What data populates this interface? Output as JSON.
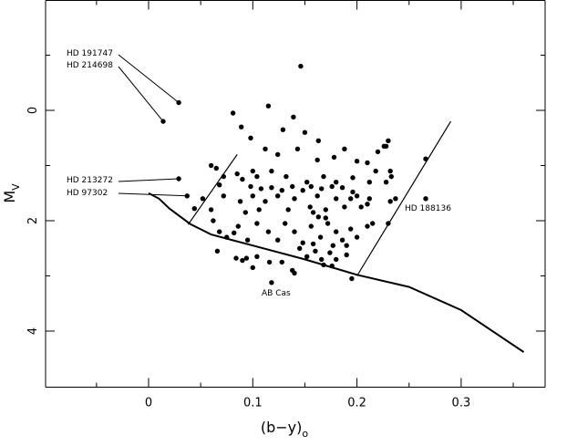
{
  "chart_data": {
    "type": "scatter",
    "title": "",
    "xlabel": "(b−y)",
    "xlabel_sub": "o",
    "ylabel": "M",
    "ylabel_sub": "V",
    "xlim": [
      -0.1,
      0.37
    ],
    "ylim": [
      5,
      -2
    ],
    "y_inverted": true,
    "grid": false,
    "xticks": [
      {
        "value": 0,
        "label": "0"
      },
      {
        "value": 0.1,
        "label": "0.1"
      },
      {
        "value": 0.2,
        "label": "0.2"
      },
      {
        "value": 0.3,
        "label": "0.3"
      }
    ],
    "xminor": [
      -0.05,
      0.05,
      0.15,
      0.25,
      0.35
    ],
    "yticks": [
      {
        "value": 0,
        "label": "0"
      },
      {
        "value": 2,
        "label": "2"
      },
      {
        "value": 4,
        "label": "4"
      }
    ],
    "yminor": [
      -1,
      1,
      3
    ],
    "zams_curve": [
      [
        0.0,
        1.5
      ],
      [
        0.01,
        1.6
      ],
      [
        0.02,
        1.78
      ],
      [
        0.04,
        2.06
      ],
      [
        0.06,
        2.25
      ],
      [
        0.1,
        2.45
      ],
      [
        0.15,
        2.7
      ],
      [
        0.2,
        2.98
      ],
      [
        0.25,
        3.2
      ],
      [
        0.3,
        3.62
      ],
      [
        0.36,
        4.38
      ]
    ],
    "instability_strip": {
      "blue_edge": [
        [
          0.038,
          2.07
        ],
        [
          0.085,
          0.8
        ]
      ],
      "red_edge": [
        [
          0.2,
          3.0
        ],
        [
          0.29,
          0.2
        ]
      ]
    },
    "points": [
      [
        0.029,
        -0.14
      ],
      [
        0.014,
        0.2
      ],
      [
        0.029,
        1.24
      ],
      [
        0.037,
        1.55
      ],
      [
        0.081,
        0.05
      ],
      [
        0.146,
        -0.8
      ],
      [
        0.115,
        -0.08
      ],
      [
        0.139,
        0.12
      ],
      [
        0.129,
        0.35
      ],
      [
        0.15,
        0.4
      ],
      [
        0.098,
        0.5
      ],
      [
        0.163,
        0.55
      ],
      [
        0.089,
        0.3
      ],
      [
        0.112,
        0.7
      ],
      [
        0.124,
        0.8
      ],
      [
        0.143,
        0.7
      ],
      [
        0.162,
        0.9
      ],
      [
        0.178,
        0.85
      ],
      [
        0.2,
        0.92
      ],
      [
        0.23,
        0.55
      ],
      [
        0.226,
        0.65
      ],
      [
        0.22,
        0.75
      ],
      [
        0.188,
        0.7
      ],
      [
        0.21,
        0.95
      ],
      [
        0.06,
        1.0
      ],
      [
        0.065,
        1.05
      ],
      [
        0.072,
        1.2
      ],
      [
        0.068,
        1.35
      ],
      [
        0.085,
        1.15
      ],
      [
        0.09,
        1.25
      ],
      [
        0.104,
        1.2
      ],
      [
        0.1,
        1.1
      ],
      [
        0.118,
        1.1
      ],
      [
        0.132,
        1.2
      ],
      [
        0.152,
        1.3
      ],
      [
        0.168,
        1.2
      ],
      [
        0.18,
        1.3
      ],
      [
        0.196,
        1.22
      ],
      [
        0.212,
        1.3
      ],
      [
        0.218,
        1.1
      ],
      [
        0.228,
        1.3
      ],
      [
        0.233,
        1.2
      ],
      [
        0.052,
        1.6
      ],
      [
        0.06,
        1.8
      ],
      [
        0.072,
        1.55
      ],
      [
        0.088,
        1.65
      ],
      [
        0.093,
        1.85
      ],
      [
        0.1,
        1.55
      ],
      [
        0.106,
        1.8
      ],
      [
        0.112,
        1.65
      ],
      [
        0.124,
        1.55
      ],
      [
        0.134,
        1.8
      ],
      [
        0.14,
        1.6
      ],
      [
        0.155,
        1.75
      ],
      [
        0.162,
        1.55
      ],
      [
        0.17,
        1.8
      ],
      [
        0.18,
        1.6
      ],
      [
        0.188,
        1.75
      ],
      [
        0.194,
        1.6
      ],
      [
        0.204,
        1.75
      ],
      [
        0.212,
        1.6
      ],
      [
        0.232,
        1.65
      ],
      [
        0.062,
        2.0
      ],
      [
        0.068,
        2.2
      ],
      [
        0.075,
        2.3
      ],
      [
        0.086,
        2.1
      ],
      [
        0.095,
        2.35
      ],
      [
        0.104,
        2.05
      ],
      [
        0.115,
        2.2
      ],
      [
        0.124,
        2.35
      ],
      [
        0.131,
        2.05
      ],
      [
        0.14,
        2.2
      ],
      [
        0.148,
        2.4
      ],
      [
        0.156,
        2.1
      ],
      [
        0.165,
        2.3
      ],
      [
        0.172,
        2.05
      ],
      [
        0.18,
        2.2
      ],
      [
        0.186,
        2.35
      ],
      [
        0.194,
        2.15
      ],
      [
        0.2,
        2.3
      ],
      [
        0.21,
        2.1
      ],
      [
        0.215,
        2.05
      ],
      [
        0.145,
        2.5
      ],
      [
        0.152,
        2.65
      ],
      [
        0.16,
        2.55
      ],
      [
        0.166,
        2.7
      ],
      [
        0.174,
        2.58
      ],
      [
        0.18,
        2.7
      ],
      [
        0.19,
        2.62
      ],
      [
        0.176,
        2.82
      ],
      [
        0.168,
        2.8
      ],
      [
        0.138,
        2.9
      ],
      [
        0.128,
        2.75
      ],
      [
        0.116,
        2.75
      ],
      [
        0.104,
        2.65
      ],
      [
        0.094,
        2.68
      ],
      [
        0.084,
        2.68
      ],
      [
        0.09,
        2.72
      ],
      [
        0.1,
        2.85
      ],
      [
        0.14,
        2.95
      ],
      [
        0.082,
        2.22
      ],
      [
        0.066,
        2.55
      ],
      [
        0.044,
        1.78
      ],
      [
        0.163,
        1.93
      ],
      [
        0.17,
        1.95
      ],
      [
        0.158,
        1.85
      ],
      [
        0.177,
        2.45
      ],
      [
        0.158,
        2.42
      ],
      [
        0.19,
        2.45
      ],
      [
        0.237,
        1.6
      ],
      [
        0.232,
        1.1
      ],
      [
        0.228,
        0.65
      ],
      [
        0.21,
        1.7
      ],
      [
        0.2,
        1.55
      ],
      [
        0.196,
        1.48
      ],
      [
        0.186,
        1.4
      ],
      [
        0.176,
        1.38
      ],
      [
        0.166,
        1.42
      ],
      [
        0.156,
        1.38
      ],
      [
        0.148,
        1.45
      ],
      [
        0.138,
        1.38
      ],
      [
        0.128,
        1.45
      ],
      [
        0.118,
        1.4
      ],
      [
        0.108,
        1.42
      ],
      [
        0.098,
        1.38
      ],
      [
        0.266,
        0.88
      ],
      [
        0.266,
        1.6
      ],
      [
        0.23,
        2.05
      ],
      [
        0.118,
        3.12
      ],
      [
        0.195,
        3.05
      ]
    ],
    "annotations": [
      {
        "text": "HD 191747",
        "target": [
          0.029,
          -0.14
        ]
      },
      {
        "text": "HD 214698",
        "target": [
          0.014,
          0.2
        ]
      },
      {
        "text": "HD 213272",
        "target": [
          0.029,
          1.24
        ]
      },
      {
        "text": "HD 97302",
        "target": [
          0.037,
          1.55
        ]
      },
      {
        "text": "HD 188136",
        "target": [
          0.266,
          1.6
        ]
      },
      {
        "text": "AB Cas",
        "target": [
          0.118,
          3.12
        ]
      }
    ]
  }
}
